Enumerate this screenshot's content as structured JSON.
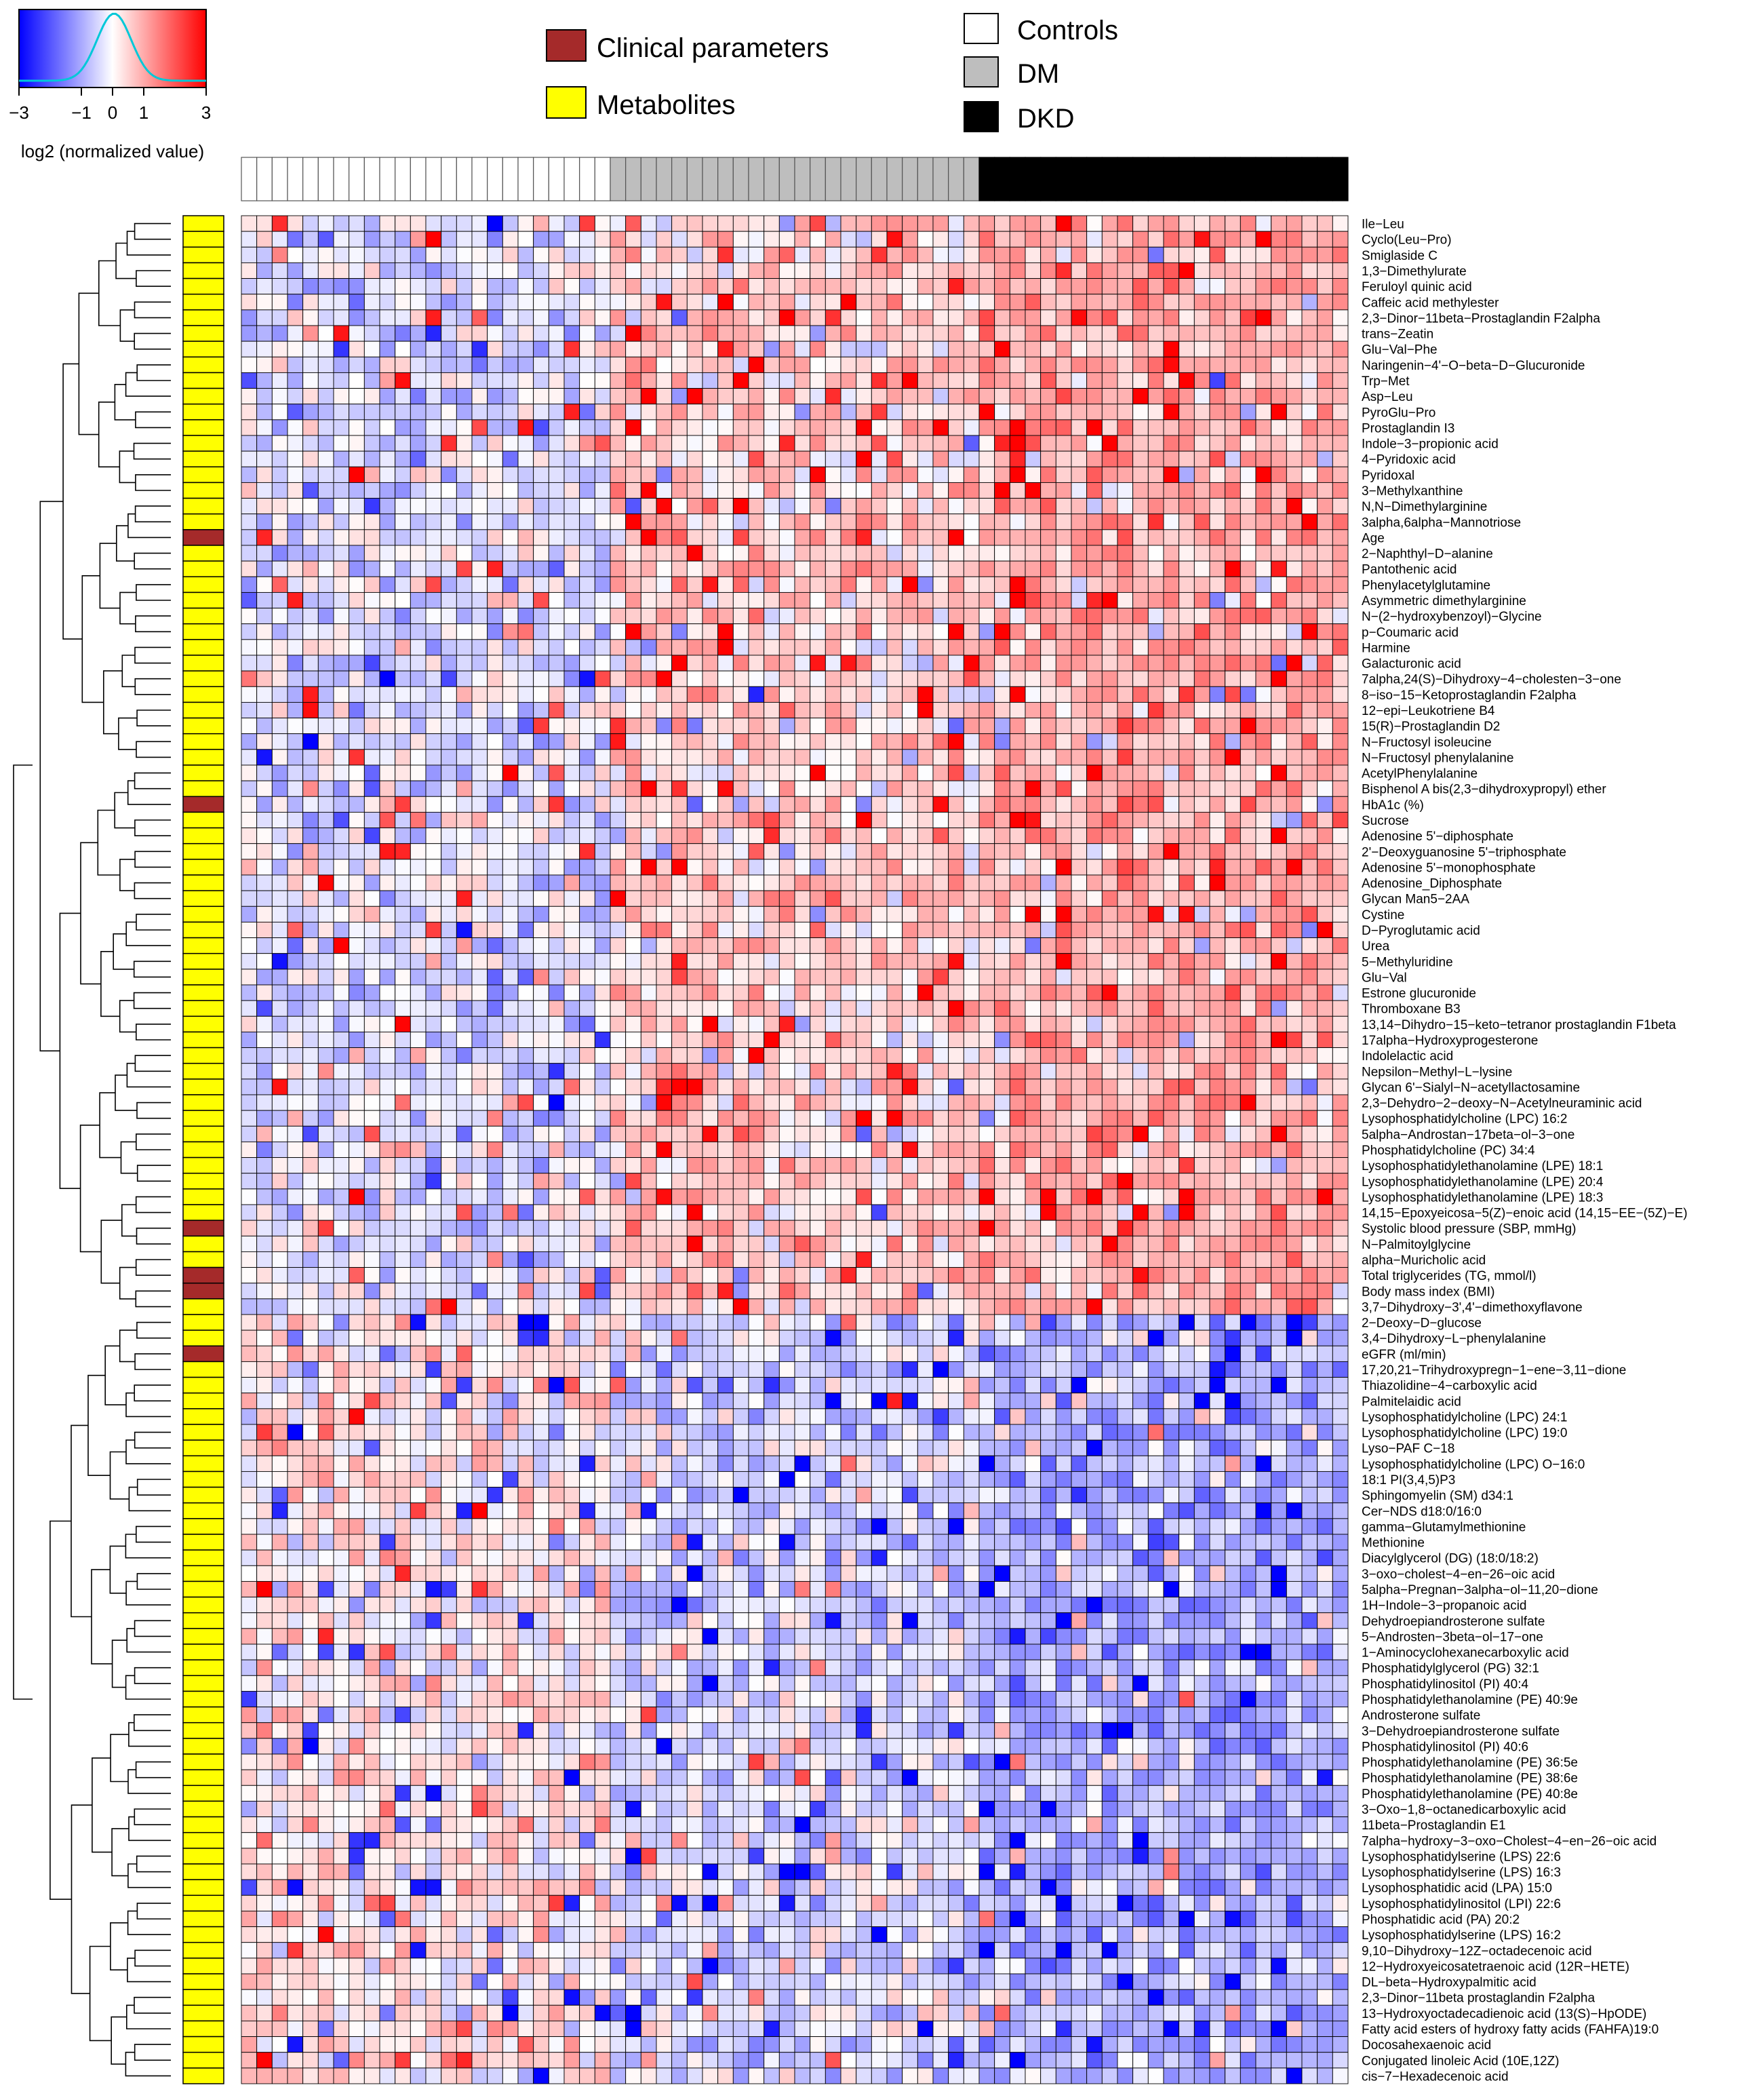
{
  "chart_data": {
    "type": "heatmap",
    "title": "",
    "color_key": {
      "label": "log2 (normalized value)",
      "ticks": [
        "−3",
        "−1",
        "0",
        "1",
        "3"
      ],
      "range": [
        -3,
        3
      ],
      "low_color": "#0000ff",
      "mid_color": "#ffffff",
      "high_color": "#ff0000",
      "histogram_color": "#00c8d8"
    },
    "row_type_legend": [
      {
        "label": "Clinical parameters",
        "color": "#a52a2a"
      },
      {
        "label": "Metabolites",
        "color": "#ffff00"
      }
    ],
    "group_legend": [
      {
        "label": "Controls",
        "color": "#ffffff"
      },
      {
        "label": "DM",
        "color": "#bebebe"
      },
      {
        "label": "DKD",
        "color": "#000000"
      }
    ],
    "column_groups": [
      {
        "name": "Controls",
        "count": 24,
        "color": "#ffffff"
      },
      {
        "name": "DM",
        "count": 24,
        "color": "#bebebe"
      },
      {
        "name": "DKD",
        "count": 24,
        "color": "#000000"
      }
    ],
    "rows": [
      {
        "label": "Ile−Leu",
        "type": "metabolite"
      },
      {
        "label": "Cyclo(Leu−Pro)",
        "type": "metabolite"
      },
      {
        "label": "Smiglaside C",
        "type": "metabolite"
      },
      {
        "label": "1,3−Dimethylurate",
        "type": "metabolite"
      },
      {
        "label": "Feruloyl quinic acid",
        "type": "metabolite"
      },
      {
        "label": "Caffeic acid methylester",
        "type": "metabolite"
      },
      {
        "label": "2,3−Dinor−11beta−Prostaglandin F2alpha",
        "type": "metabolite"
      },
      {
        "label": "trans−Zeatin",
        "type": "metabolite"
      },
      {
        "label": "Glu−Val−Phe",
        "type": "metabolite"
      },
      {
        "label": "Naringenin−4'−O−beta−D−Glucuronide",
        "type": "metabolite"
      },
      {
        "label": "Trp−Met",
        "type": "metabolite"
      },
      {
        "label": "Asp−Leu",
        "type": "metabolite"
      },
      {
        "label": "PyroGlu−Pro",
        "type": "metabolite"
      },
      {
        "label": "Prostaglandin I3",
        "type": "metabolite"
      },
      {
        "label": "Indole−3−propionic acid",
        "type": "metabolite"
      },
      {
        "label": "4−Pyridoxic acid",
        "type": "metabolite"
      },
      {
        "label": "Pyridoxal",
        "type": "metabolite"
      },
      {
        "label": "3−Methylxanthine",
        "type": "metabolite"
      },
      {
        "label": "N,N−Dimethylarginine",
        "type": "metabolite"
      },
      {
        "label": "3alpha,6alpha−Mannotriose",
        "type": "metabolite"
      },
      {
        "label": "Age",
        "type": "clinical"
      },
      {
        "label": "2−Naphthyl−D−alanine",
        "type": "metabolite"
      },
      {
        "label": "Pantothenic acid",
        "type": "metabolite"
      },
      {
        "label": "Phenylacetylglutamine",
        "type": "metabolite"
      },
      {
        "label": "Asymmetric dimethylarginine",
        "type": "metabolite"
      },
      {
        "label": "N−(2−hydroxybenzoyl)−Glycine",
        "type": "metabolite"
      },
      {
        "label": "p−Coumaric acid",
        "type": "metabolite"
      },
      {
        "label": "Harmine",
        "type": "metabolite"
      },
      {
        "label": "Galacturonic acid",
        "type": "metabolite"
      },
      {
        "label": "7alpha,24(S)−Dihydroxy−4−cholesten−3−one",
        "type": "metabolite"
      },
      {
        "label": "8−iso−15−Ketoprostaglandin F2alpha",
        "type": "metabolite"
      },
      {
        "label": "12−epi−Leukotriene B4",
        "type": "metabolite"
      },
      {
        "label": "15(R)−Prostaglandin D2",
        "type": "metabolite"
      },
      {
        "label": "N−Fructosyl isoleucine",
        "type": "metabolite"
      },
      {
        "label": "N−Fructosyl phenylalanine",
        "type": "metabolite"
      },
      {
        "label": "AcetylPhenylalanine",
        "type": "metabolite"
      },
      {
        "label": "Bisphenol A bis(2,3−dihydroxypropyl) ether",
        "type": "metabolite"
      },
      {
        "label": "HbA1c (%)",
        "type": "clinical"
      },
      {
        "label": "Sucrose",
        "type": "metabolite"
      },
      {
        "label": "Adenosine 5'−diphosphate",
        "type": "metabolite"
      },
      {
        "label": "2'−Deoxyguanosine 5'−triphosphate",
        "type": "metabolite"
      },
      {
        "label": "Adenosine 5'−monophosphate",
        "type": "metabolite"
      },
      {
        "label": "Adenosine_Diphosphate",
        "type": "metabolite"
      },
      {
        "label": "Glycan Man5−2AA",
        "type": "metabolite"
      },
      {
        "label": "Cystine",
        "type": "metabolite"
      },
      {
        "label": "D−Pyroglutamic acid",
        "type": "metabolite"
      },
      {
        "label": "Urea",
        "type": "metabolite"
      },
      {
        "label": "5−Methyluridine",
        "type": "metabolite"
      },
      {
        "label": "Glu−Val",
        "type": "metabolite"
      },
      {
        "label": "Estrone glucuronide",
        "type": "metabolite"
      },
      {
        "label": "Thromboxane B3",
        "type": "metabolite"
      },
      {
        "label": "13,14−Dihydro−15−keto−tetranor prostaglandin F1beta",
        "type": "metabolite"
      },
      {
        "label": "17alpha−Hydroxyprogesterone",
        "type": "metabolite"
      },
      {
        "label": "Indolelactic acid",
        "type": "metabolite"
      },
      {
        "label": "Nepsilon−Methyl−L−lysine",
        "type": "metabolite"
      },
      {
        "label": "Glycan 6'−Sialyl−N−acetyllactosamine",
        "type": "metabolite"
      },
      {
        "label": "2,3−Dehydro−2−deoxy−N−Acetylneuraminic acid",
        "type": "metabolite"
      },
      {
        "label": "Lysophosphatidylcholine (LPC) 16:2",
        "type": "metabolite"
      },
      {
        "label": "5alpha−Androstan−17beta−ol−3−one",
        "type": "metabolite"
      },
      {
        "label": "Phosphatidylcholine (PC) 34:4",
        "type": "metabolite"
      },
      {
        "label": "Lysophosphatidylethanolamine (LPE) 18:1",
        "type": "metabolite"
      },
      {
        "label": "Lysophosphatidylethanolamine (LPE) 20:4",
        "type": "metabolite"
      },
      {
        "label": "Lysophosphatidylethanolamine (LPE) 18:3",
        "type": "metabolite"
      },
      {
        "label": "14,15−Epoxyeicosa−5(Z)−enoic acid (14,15−EE−(5Z)−E)",
        "type": "metabolite"
      },
      {
        "label": "Systolic blood pressure (SBP, mmHg)",
        "type": "clinical"
      },
      {
        "label": "N−Palmitoylglycine",
        "type": "metabolite"
      },
      {
        "label": "alpha−Muricholic acid",
        "type": "metabolite"
      },
      {
        "label": "Total triglycerides (TG, mmol/l)",
        "type": "clinical"
      },
      {
        "label": "Body mass index (BMI)",
        "type": "clinical"
      },
      {
        "label": "3,7−Dihydroxy−3',4'−dimethoxyflavone",
        "type": "metabolite"
      },
      {
        "label": "2−Deoxy−D−glucose",
        "type": "metabolite"
      },
      {
        "label": "3,4−Dihydroxy−L−phenylalanine",
        "type": "metabolite"
      },
      {
        "label": "eGFR (ml/min)",
        "type": "clinical"
      },
      {
        "label": "17,20,21−Trihydroxypregn−1−ene−3,11−dione",
        "type": "metabolite"
      },
      {
        "label": "Thiazolidine−4−carboxylic acid",
        "type": "metabolite"
      },
      {
        "label": "Palmitelaidic acid",
        "type": "metabolite"
      },
      {
        "label": "Lysophosphatidylcholine (LPC) 24:1",
        "type": "metabolite"
      },
      {
        "label": "Lysophosphatidylcholine (LPC) 19:0",
        "type": "metabolite"
      },
      {
        "label": "Lyso−PAF C−18",
        "type": "metabolite"
      },
      {
        "label": "Lysophosphatidylcholine (LPC) O−16:0",
        "type": "metabolite"
      },
      {
        "label": "18:1 PI(3,4,5)P3",
        "type": "metabolite"
      },
      {
        "label": "Sphingomyelin (SM) d34:1",
        "type": "metabolite"
      },
      {
        "label": "Cer−NDS d18:0/16:0",
        "type": "metabolite"
      },
      {
        "label": "gamma−Glutamylmethionine",
        "type": "metabolite"
      },
      {
        "label": "Methionine",
        "type": "metabolite"
      },
      {
        "label": "Diacylglycerol (DG) (18:0/18:2)",
        "type": "metabolite"
      },
      {
        "label": "3−oxo−cholest−4−en−26−oic acid",
        "type": "metabolite"
      },
      {
        "label": "5alpha−Pregnan−3alpha−ol−11,20−dione",
        "type": "metabolite"
      },
      {
        "label": "1H−Indole−3−propanoic acid",
        "type": "metabolite"
      },
      {
        "label": "Dehydroepiandrosterone sulfate",
        "type": "metabolite"
      },
      {
        "label": "5−Androsten−3beta−ol−17−one",
        "type": "metabolite"
      },
      {
        "label": "1−Aminocyclohexanecarboxylic acid",
        "type": "metabolite"
      },
      {
        "label": "Phosphatidylglycerol (PG) 32:1",
        "type": "metabolite"
      },
      {
        "label": "Phosphatidylinositol (PI) 40:4",
        "type": "metabolite"
      },
      {
        "label": "Phosphatidylethanolamine (PE) 40:9e",
        "type": "metabolite"
      },
      {
        "label": "Androsterone sulfate",
        "type": "metabolite"
      },
      {
        "label": "3−Dehydroepiandrosterone sulfate",
        "type": "metabolite"
      },
      {
        "label": "Phosphatidylinositol (PI) 40:6",
        "type": "metabolite"
      },
      {
        "label": "Phosphatidylethanolamine (PE) 36:5e",
        "type": "metabolite"
      },
      {
        "label": "Phosphatidylethanolamine (PE) 38:6e",
        "type": "metabolite"
      },
      {
        "label": "Phosphatidylethanolamine (PE) 40:8e",
        "type": "metabolite"
      },
      {
        "label": "3−Oxo−1,8−octanedicarboxylic acid",
        "type": "metabolite"
      },
      {
        "label": "11beta−Prostaglandin E1",
        "type": "metabolite"
      },
      {
        "label": "7alpha−hydroxy−3−oxo−Cholest−4−en−26−oic acid",
        "type": "metabolite"
      },
      {
        "label": "Lysophosphatidylserine (LPS) 22:6",
        "type": "metabolite"
      },
      {
        "label": "Lysophosphatidylserine (LPS) 16:3",
        "type": "metabolite"
      },
      {
        "label": "Lysophosphatidic acid (LPA) 15:0",
        "type": "metabolite"
      },
      {
        "label": "Lysophosphatidylinositol (LPI) 22:6",
        "type": "metabolite"
      },
      {
        "label": "Phosphatidic acid (PA) 20:2",
        "type": "metabolite"
      },
      {
        "label": "Lysophosphatidylserine (LPS) 16:2",
        "type": "metabolite"
      },
      {
        "label": "9,10−Dihydroxy−12Z−octadecenoic acid",
        "type": "metabolite"
      },
      {
        "label": "12−Hydroxyeicosatetraenoic acid (12R−HETE)",
        "type": "metabolite"
      },
      {
        "label": "DL−beta−Hydroxypalmitic acid",
        "type": "metabolite"
      },
      {
        "label": "2,3−Dinor−11beta prostaglandin F2alpha",
        "type": "metabolite"
      },
      {
        "label": "13−Hydroxyoctadecadienoic acid (13(S)−HpODE)",
        "type": "metabolite"
      },
      {
        "label": "Fatty acid esters of hydroxy fatty acids (FAHFA)19:0",
        "type": "metabolite"
      },
      {
        "label": "Docosahexaenoic acid",
        "type": "metabolite"
      },
      {
        "label": "Conjugated linoleic Acid (10E,12Z)",
        "type": "metabolite"
      },
      {
        "label": "cis−7−Hexadecenoic acid",
        "type": "metabolite"
      }
    ],
    "upregulated_rows_end": 70,
    "pattern_note": "Upper block (Ile-Leu to 3,7-Dihydroxy-3',4'-dimethoxyflavone) increases from Controls to DM to DKD; lower block (2-Deoxy-D-glucose to cis-7-Hexadecenoic acid) decreases, strongest in DKD."
  }
}
